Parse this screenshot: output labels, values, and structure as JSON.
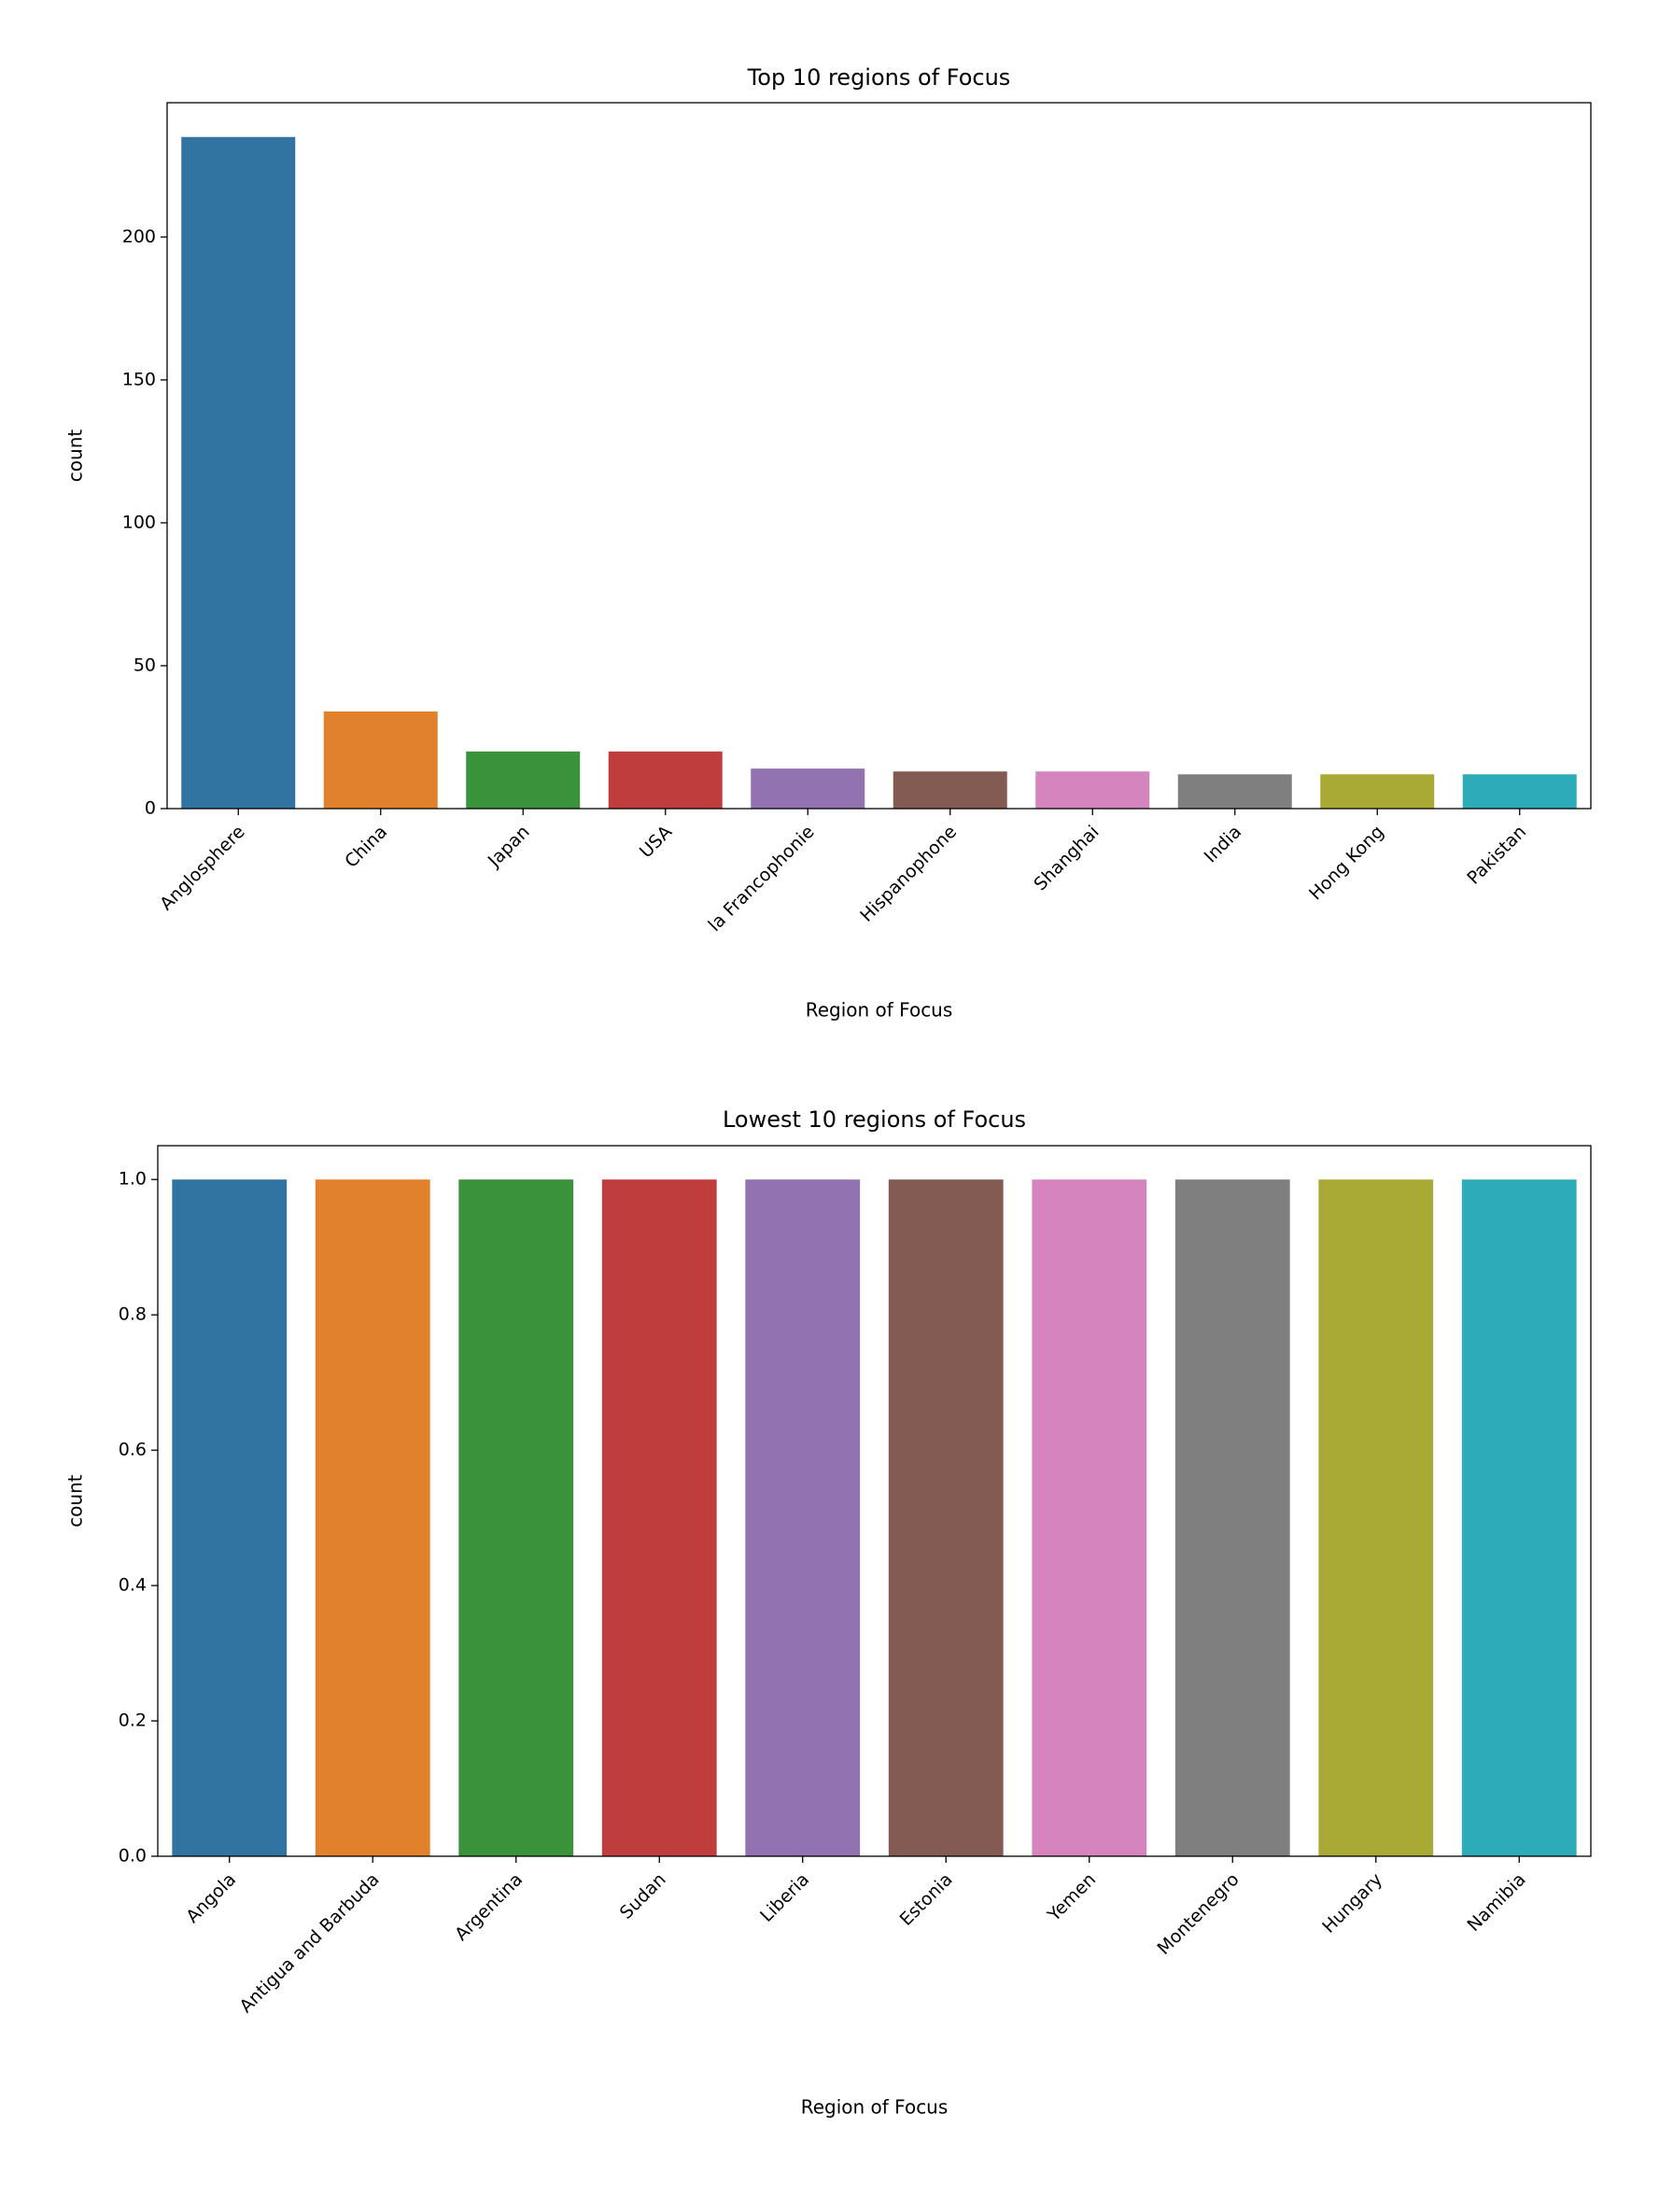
{
  "chart_data": [
    {
      "type": "bar",
      "title": "Top 10 regions of Focus",
      "x_label": "Region of Focus",
      "y_label": "count",
      "categories": [
        "Anglosphere",
        "China",
        "Japan",
        "USA",
        "la Francophonie",
        "Hispanophone",
        "Shanghai",
        "India",
        "Hong Kong",
        "Pakistan"
      ],
      "values": [
        235,
        34,
        20,
        20,
        14,
        13,
        13,
        12,
        12,
        12
      ],
      "colors": [
        "#3274a1",
        "#e1812c",
        "#3a923a",
        "#c03d3e",
        "#9372b2",
        "#845b53",
        "#d684bd",
        "#7f7f7f",
        "#a9aa35",
        "#2eabb8"
      ],
      "ylim": [
        0,
        247
      ],
      "yticks": [
        0,
        50,
        100,
        150,
        200
      ],
      "grid": false
    },
    {
      "type": "bar",
      "title": "Lowest 10 regions of Focus",
      "x_label": "Region of Focus",
      "y_label": "count",
      "categories": [
        "Angola",
        "Antigua and Barbuda",
        "Argentina",
        "Sudan",
        "Liberia",
        "Estonia",
        "Yemen",
        "Montenegro",
        "Hungary",
        "Namibia"
      ],
      "values": [
        1,
        1,
        1,
        1,
        1,
        1,
        1,
        1,
        1,
        1
      ],
      "colors": [
        "#3274a1",
        "#e1812c",
        "#3a923a",
        "#c03d3e",
        "#9372b2",
        "#845b53",
        "#d684bd",
        "#7f7f7f",
        "#a9aa35",
        "#2eabb8"
      ],
      "ylim": [
        0,
        1.05
      ],
      "yticks": [
        {
          "value": 0,
          "label": "0.0"
        },
        0.2,
        0.4,
        0.6,
        0.8,
        {
          "value": 1,
          "label": "1.0"
        }
      ],
      "grid": false
    }
  ]
}
